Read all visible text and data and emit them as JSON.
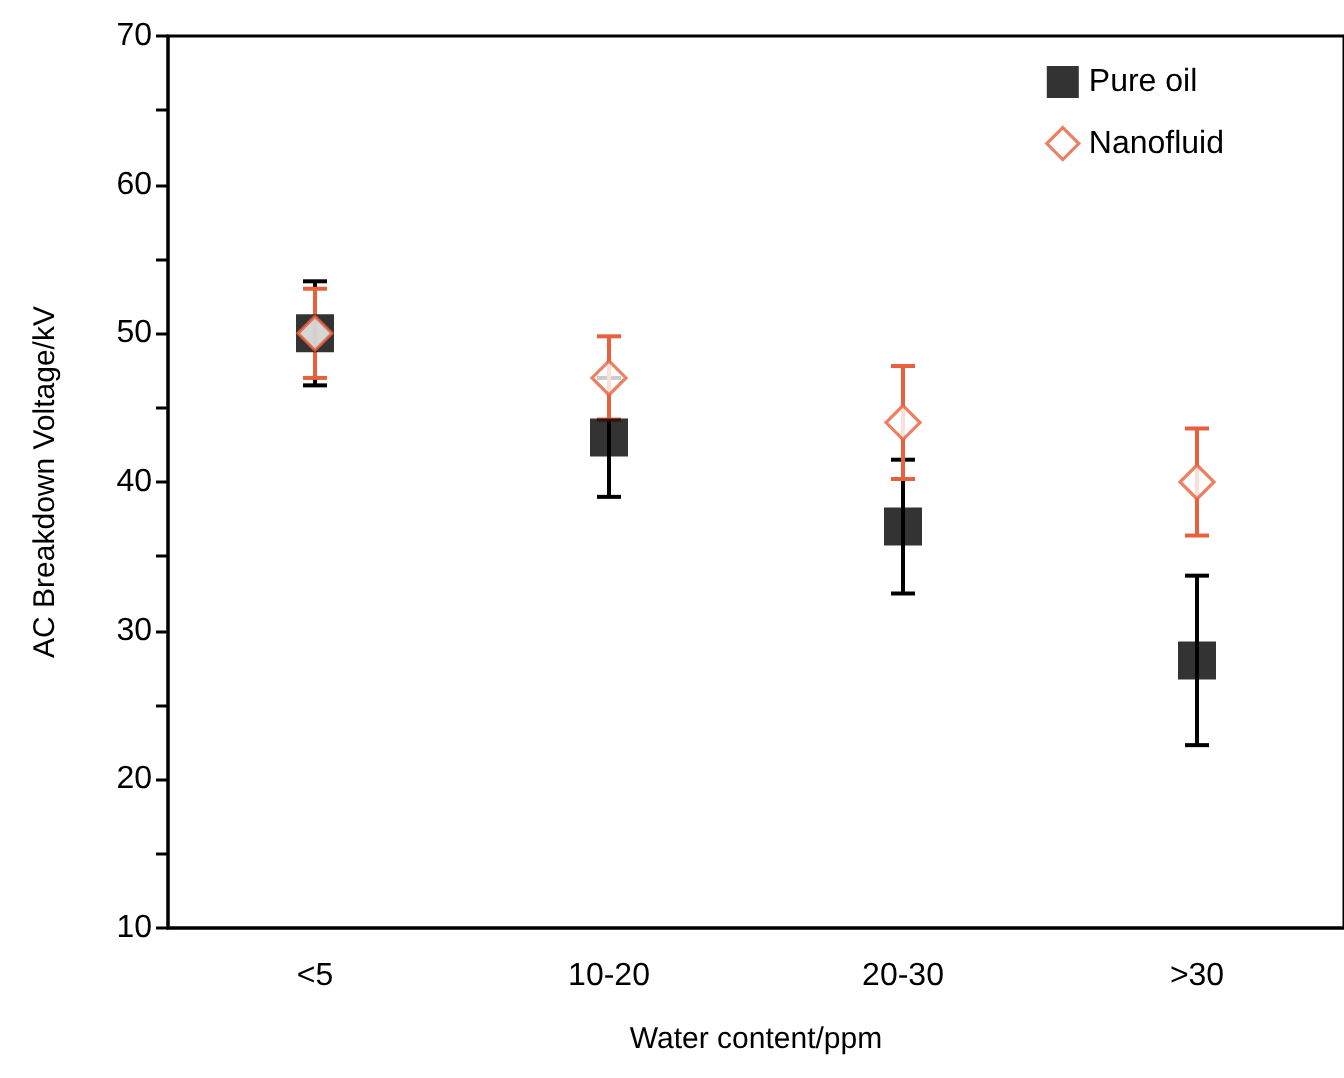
{
  "chart_data": {
    "type": "scatter",
    "xlabel": "Water content/ppm",
    "ylabel": "AC Breakdown Voltage/kV",
    "categories": [
      "<5",
      "10-20",
      "20-30",
      ">30"
    ],
    "series": [
      {
        "name": "Pure oil",
        "color": "#000000",
        "marker": "square",
        "values": [
          50,
          43,
          37,
          28
        ],
        "errors": [
          3.5,
          4,
          4.5,
          5.7
        ]
      },
      {
        "name": "Nanofluid",
        "color": "#e8603c",
        "marker": "diamond",
        "values": [
          50,
          47,
          44,
          40
        ],
        "errors": [
          3,
          2.8,
          3.8,
          3.6
        ]
      }
    ],
    "ylim": [
      10,
      70
    ],
    "yticks": [
      10,
      {
        "value": 15,
        "label": null
      },
      20,
      {
        "value": 25,
        "label": null
      },
      30,
      {
        "value": 35,
        "label": null
      },
      40,
      {
        "value": 45,
        "label": null
      },
      50,
      {
        "value": 55,
        "label": null
      },
      60,
      {
        "value": 65,
        "label": null
      },
      70
    ],
    "grid": false,
    "legend": "top right"
  }
}
